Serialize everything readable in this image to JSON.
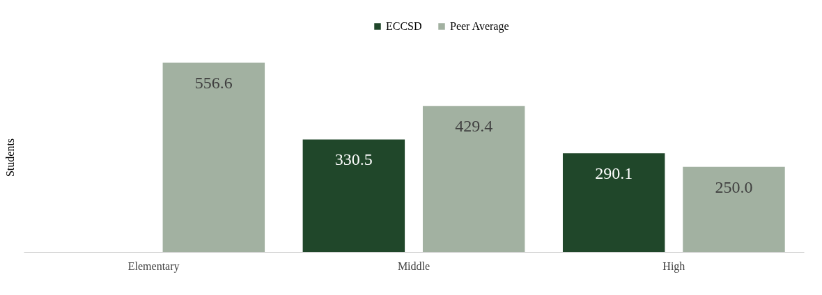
{
  "chart_data": {
    "type": "bar",
    "ylabel": "Students",
    "categories": [
      "Elementary",
      "Middle",
      "High"
    ],
    "series": [
      {
        "name": "ECCSD",
        "color": "#20472a",
        "values": [
          null,
          330.5,
          290.1
        ],
        "value_labels": [
          null,
          "330.5",
          "290.1"
        ]
      },
      {
        "name": "Peer Average",
        "color": "#a2b1a1",
        "values": [
          556.6,
          429.4,
          250.0
        ],
        "value_labels": [
          "556.6",
          "429.4",
          "250.0"
        ]
      }
    ],
    "legend": "top",
    "grid": false,
    "tick_labels": "x"
  }
}
